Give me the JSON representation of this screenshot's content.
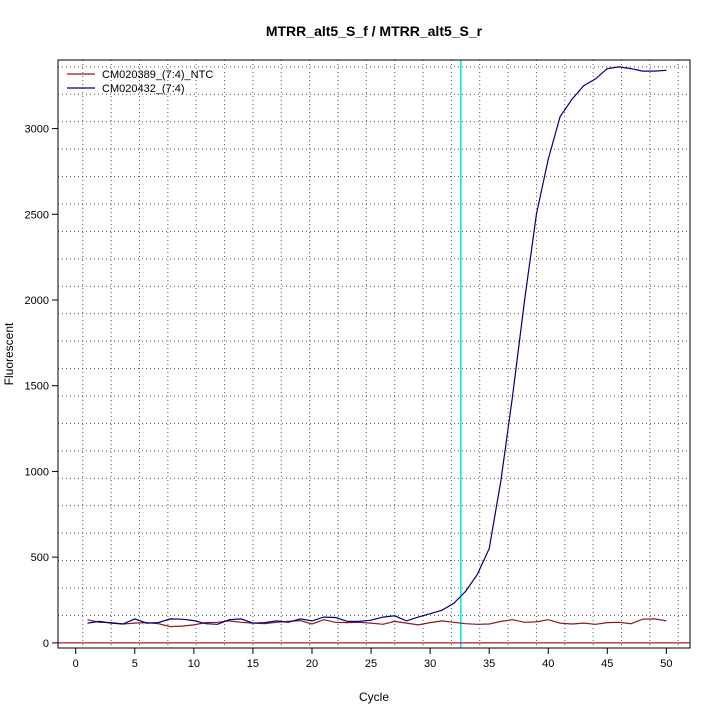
{
  "chart_data": {
    "type": "line",
    "title": "MTRR_alt5_S_f / MTRR_alt5_S_r",
    "xlabel": "Cycle",
    "ylabel": "Fluorescent",
    "xlim": [
      -1.5,
      52
    ],
    "ylim": [
      -30,
      3400
    ],
    "x_ticks": [
      0,
      5,
      10,
      15,
      20,
      25,
      30,
      35,
      40,
      45,
      50
    ],
    "y_ticks": [
      0,
      500,
      1000,
      1500,
      2000,
      2500,
      3000
    ],
    "grid": true,
    "legend_position": "top-left",
    "threshold_cycle": 32.6,
    "threshold_color": "#00e5ee",
    "baseline_value": 0,
    "baseline_color": "#b22222",
    "x": [
      1,
      2,
      3,
      4,
      5,
      6,
      7,
      8,
      9,
      10,
      11,
      12,
      13,
      14,
      15,
      16,
      17,
      18,
      19,
      20,
      21,
      22,
      23,
      24,
      25,
      26,
      27,
      28,
      29,
      30,
      31,
      32,
      33,
      34,
      35,
      36,
      37,
      38,
      39,
      40,
      41,
      42,
      43,
      44,
      45,
      46,
      47,
      48,
      49,
      50
    ],
    "series": [
      {
        "name": "CM020389_(7:4)_NTC",
        "color": "#8b1a1a",
        "values": [
          135,
          120,
          118,
          110,
          115,
          118,
          112,
          95,
          98,
          105,
          118,
          120,
          128,
          120,
          115,
          112,
          120,
          125,
          130,
          110,
          135,
          120,
          118,
          120,
          115,
          108,
          125,
          115,
          105,
          118,
          128,
          120,
          112,
          108,
          110,
          125,
          135,
          120,
          122,
          135,
          115,
          110,
          115,
          108,
          118,
          120,
          112,
          138,
          140,
          128
        ]
      },
      {
        "name": "CM020432_(7:4)",
        "color": "#000080",
        "values": [
          115,
          125,
          115,
          110,
          140,
          115,
          118,
          140,
          138,
          130,
          112,
          108,
          135,
          140,
          115,
          118,
          128,
          120,
          140,
          128,
          150,
          148,
          125,
          125,
          132,
          150,
          158,
          128,
          150,
          170,
          190,
          230,
          300,
          400,
          550,
          950,
          1450,
          2000,
          2500,
          2820,
          3070,
          3170,
          3250,
          3290,
          3350,
          3360,
          3350,
          3335,
          3335,
          3340
        ]
      }
    ]
  }
}
